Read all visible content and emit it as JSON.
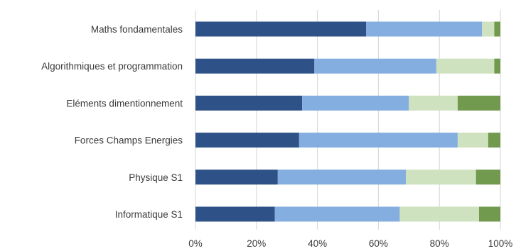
{
  "chart_data": {
    "type": "bar",
    "orientation": "horizontal",
    "stacked": "percent",
    "categories": [
      "Maths fondamentales",
      "Algorithmiques et programmation",
      "Eléments dimentionnement",
      "Forces Champs Energies",
      "Physique S1",
      "Informatique S1"
    ],
    "series": [
      {
        "color": "#2e5187",
        "values": [
          56,
          39,
          35,
          34,
          27,
          26
        ]
      },
      {
        "color": "#84ade0",
        "values": [
          38,
          40,
          35,
          52,
          42,
          41
        ]
      },
      {
        "color": "#cfe2bf",
        "values": [
          4,
          19,
          16,
          10,
          23,
          26
        ]
      },
      {
        "color": "#719a4f",
        "values": [
          2,
          2,
          14,
          4,
          8,
          7
        ]
      }
    ],
    "xlim": [
      0,
      100
    ],
    "x_ticks": [
      "0%",
      "20%",
      "40%",
      "60%",
      "80%",
      "100%"
    ],
    "grid": true,
    "legend": "none"
  }
}
